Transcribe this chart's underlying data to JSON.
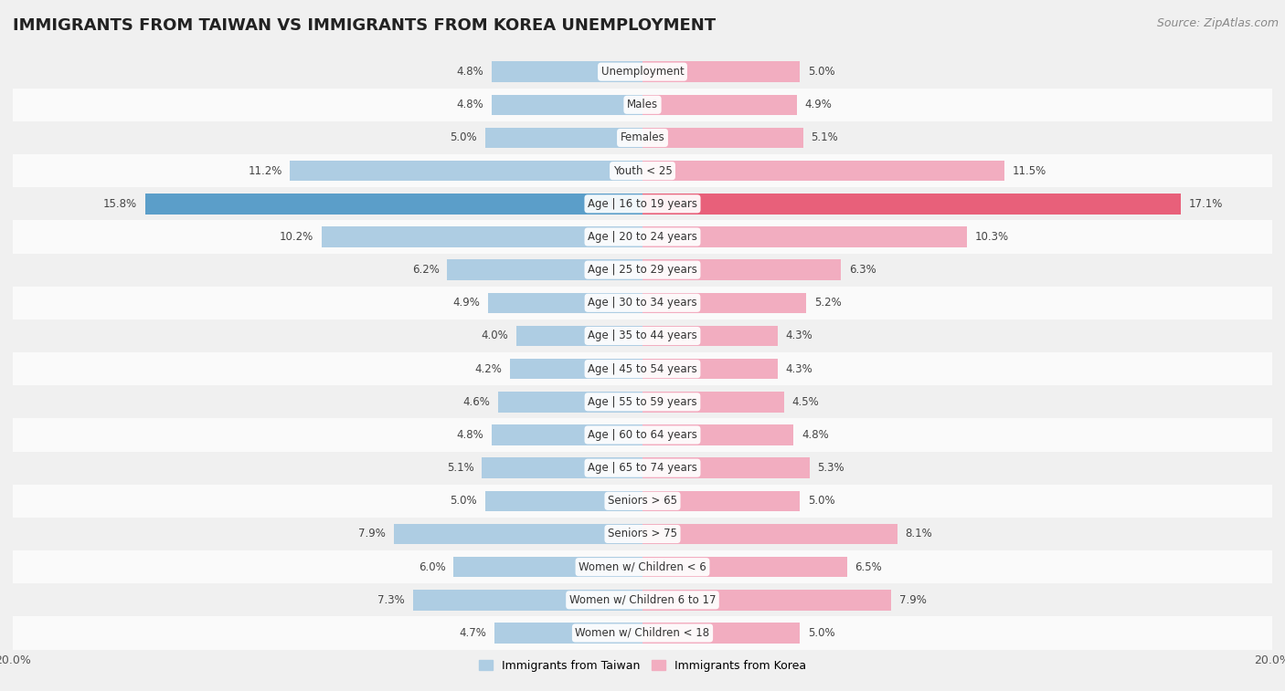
{
  "title": "IMMIGRANTS FROM TAIWAN VS IMMIGRANTS FROM KOREA UNEMPLOYMENT",
  "source": "Source: ZipAtlas.com",
  "categories": [
    "Unemployment",
    "Males",
    "Females",
    "Youth < 25",
    "Age | 16 to 19 years",
    "Age | 20 to 24 years",
    "Age | 25 to 29 years",
    "Age | 30 to 34 years",
    "Age | 35 to 44 years",
    "Age | 45 to 54 years",
    "Age | 55 to 59 years",
    "Age | 60 to 64 years",
    "Age | 65 to 74 years",
    "Seniors > 65",
    "Seniors > 75",
    "Women w/ Children < 6",
    "Women w/ Children 6 to 17",
    "Women w/ Children < 18"
  ],
  "taiwan_values": [
    4.8,
    4.8,
    5.0,
    11.2,
    15.8,
    10.2,
    6.2,
    4.9,
    4.0,
    4.2,
    4.6,
    4.8,
    5.1,
    5.0,
    7.9,
    6.0,
    7.3,
    4.7
  ],
  "korea_values": [
    5.0,
    4.9,
    5.1,
    11.5,
    17.1,
    10.3,
    6.3,
    5.2,
    4.3,
    4.3,
    4.5,
    4.8,
    5.3,
    5.0,
    8.1,
    6.5,
    7.9,
    5.0
  ],
  "taiwan_color": "#aecde3",
  "korea_color": "#f2adc0",
  "taiwan_highlight_color": "#5b9ec9",
  "korea_highlight_color": "#e8607a",
  "background_color": "#f0f0f0",
  "row_even_color": "#f0f0f0",
  "row_odd_color": "#fafafa",
  "axis_limit": 20.0,
  "taiwan_label": "Immigrants from Taiwan",
  "korea_label": "Immigrants from Korea",
  "title_fontsize": 13,
  "source_fontsize": 9,
  "bar_height": 0.62,
  "label_fontsize": 9,
  "category_fontsize": 8.5,
  "value_fontsize": 8.5
}
